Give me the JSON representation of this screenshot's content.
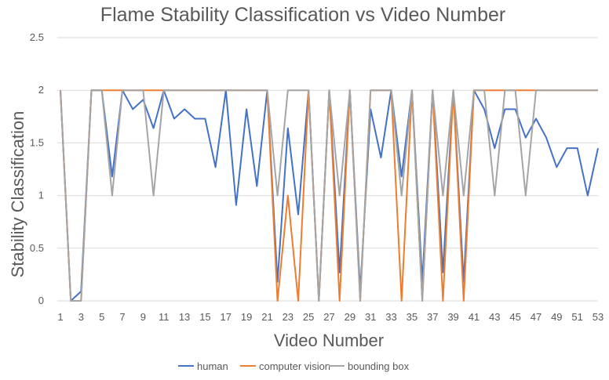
{
  "chart_data": {
    "type": "line",
    "title": "Flame Stability Classification vs Video Number",
    "xlabel": "Video Number",
    "ylabel": "Stability Classification",
    "ylim": [
      0,
      2.5
    ],
    "yticks": [
      "0",
      "0.5",
      "1",
      "1.5",
      "2",
      "2.5"
    ],
    "grid": true,
    "legend_position": "bottom",
    "categories": [
      1,
      2,
      3,
      4,
      5,
      6,
      7,
      8,
      9,
      10,
      11,
      12,
      13,
      14,
      15,
      16,
      17,
      18,
      19,
      20,
      21,
      22,
      23,
      24,
      25,
      26,
      27,
      28,
      29,
      30,
      31,
      32,
      33,
      34,
      35,
      36,
      37,
      38,
      39,
      40,
      41,
      42,
      43,
      44,
      45,
      46,
      47,
      48,
      49,
      50,
      51,
      52,
      53
    ],
    "tick_labels": [
      "1",
      "3",
      "5",
      "7",
      "9",
      "11",
      "13",
      "15",
      "17",
      "19",
      "21",
      "23",
      "25",
      "27",
      "29",
      "31",
      "33",
      "35",
      "37",
      "39",
      "41",
      "43",
      "45",
      "47",
      "49",
      "51",
      "53"
    ],
    "series": [
      {
        "name": "human",
        "color": "#4472c4",
        "values": [
          2,
          0,
          0.09,
          2,
          2,
          1.18,
          2,
          1.82,
          1.91,
          1.64,
          2,
          1.73,
          1.82,
          1.73,
          1.73,
          1.27,
          2,
          0.91,
          1.82,
          1.09,
          2,
          0.18,
          1.64,
          0.82,
          2,
          0,
          2,
          0.27,
          2,
          0.09,
          1.82,
          1.36,
          2,
          1.18,
          2,
          0.18,
          2,
          0.27,
          2,
          0.18,
          2,
          1.82,
          1.45,
          1.82,
          1.82,
          1.55,
          1.73,
          1.55,
          1.27,
          1.45,
          1.45,
          1,
          1.45
        ]
      },
      {
        "name": "computer vision",
        "color": "#ed7d31",
        "values": [
          2,
          0,
          0,
          2,
          2,
          2,
          2,
          2,
          2,
          2,
          2,
          2,
          2,
          2,
          2,
          2,
          2,
          2,
          2,
          2,
          2,
          0,
          1,
          0,
          2,
          0,
          2,
          0,
          2,
          0,
          2,
          2,
          2,
          0,
          2,
          0,
          2,
          0,
          2,
          0,
          2,
          2,
          2,
          2,
          2,
          2,
          2,
          2,
          2,
          2,
          2,
          2,
          2
        ]
      },
      {
        "name": "bounding box",
        "color": "#a5a5a5",
        "values": [
          2,
          0,
          0,
          2,
          2,
          1,
          2,
          2,
          2,
          1,
          2,
          2,
          2,
          2,
          2,
          2,
          2,
          2,
          2,
          2,
          2,
          1,
          2,
          2,
          2,
          0,
          2,
          1,
          2,
          0,
          2,
          2,
          2,
          1,
          2,
          0,
          2,
          1,
          2,
          1,
          2,
          2,
          1,
          2,
          2,
          1,
          2,
          2,
          2,
          2,
          2,
          2,
          2
        ]
      }
    ]
  }
}
